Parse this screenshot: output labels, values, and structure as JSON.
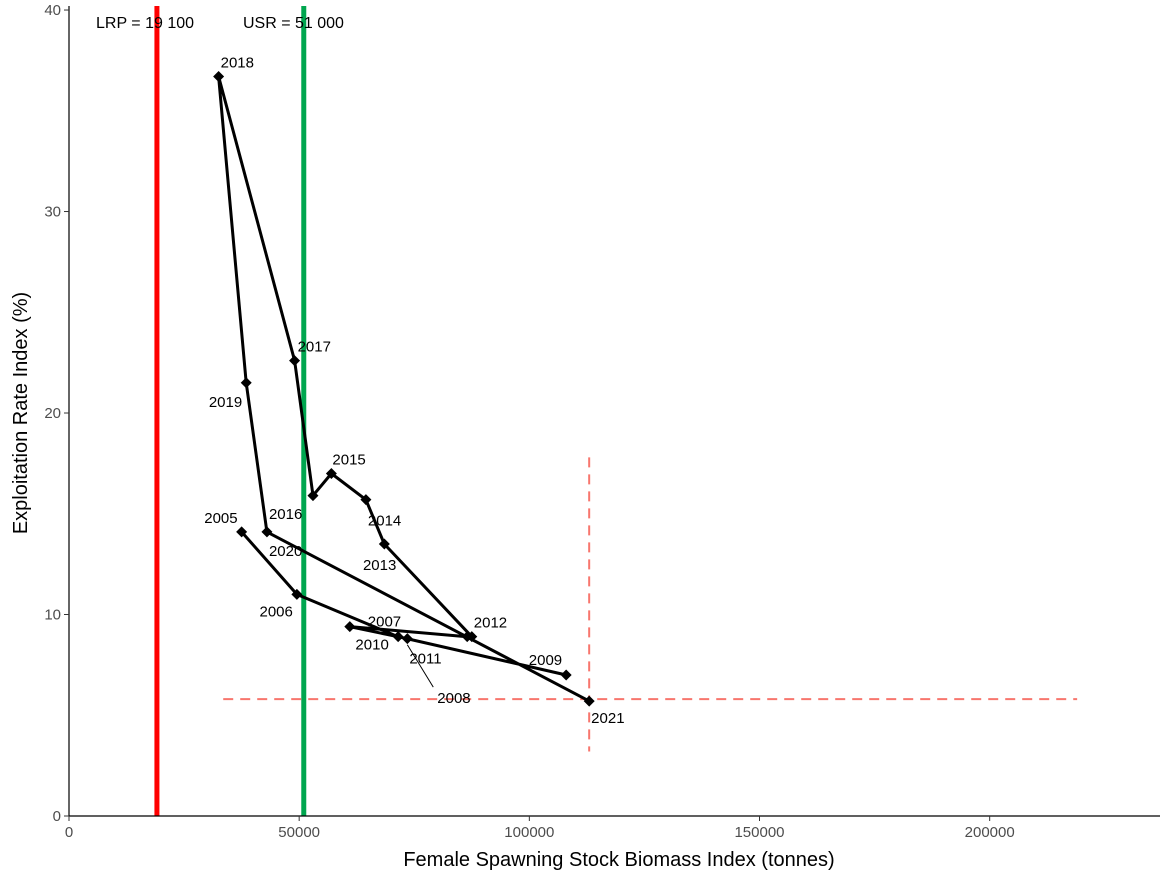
{
  "chart_data": {
    "type": "line",
    "xlabel": "Female Spawning Stock Biomass Index (tonnes)",
    "ylabel": "Exploitation Rate Index (%)",
    "xlim": [
      0,
      237000
    ],
    "ylim": [
      0,
      40.2
    ],
    "x_ticks": [
      0,
      50000,
      100000,
      150000,
      200000
    ],
    "x_tick_labels": [
      "0",
      "50000",
      "100000",
      "150000",
      "200000"
    ],
    "y_ticks": [
      0,
      10,
      20,
      30,
      40
    ],
    "y_tick_labels": [
      "0",
      "10",
      "20",
      "30",
      "40"
    ],
    "grid": false,
    "series": [
      {
        "points": [
          {
            "year": "2005",
            "x": 37500,
            "y": 14.1
          },
          {
            "year": "2006",
            "x": 49500,
            "y": 11.0
          },
          {
            "year": "2007",
            "x": 71500,
            "y": 8.9
          },
          {
            "year": "2008",
            "x": 108000,
            "y": 7.0
          },
          {
            "year": "2009",
            "x": 73500,
            "y": 8.8
          },
          {
            "year": "2010",
            "x": 61000,
            "y": 9.4
          },
          {
            "year": "2011",
            "x": 86500,
            "y": 8.9
          },
          {
            "year": "2012",
            "x": 87500,
            "y": 8.9
          },
          {
            "year": "2013",
            "x": 68500,
            "y": 13.5
          },
          {
            "year": "2014",
            "x": 64500,
            "y": 15.7
          },
          {
            "year": "2015",
            "x": 57000,
            "y": 17.0
          },
          {
            "year": "2016",
            "x": 53000,
            "y": 15.9
          },
          {
            "year": "2017",
            "x": 49000,
            "y": 22.6
          },
          {
            "year": "2018",
            "x": 32500,
            "y": 36.7
          },
          {
            "year": "2019",
            "x": 38500,
            "y": 21.5
          },
          {
            "year": "2020",
            "x": 43000,
            "y": 14.1
          },
          {
            "year": "2021",
            "x": 113000,
            "y": 5.7
          }
        ],
        "color": "#000000"
      }
    ],
    "reference_lines": [
      {
        "label": "LRP = 19 100",
        "x": 19100,
        "color": "#ff0000"
      },
      {
        "label": "USR = 51 000",
        "x": 51000,
        "color": "#00a64f"
      }
    ],
    "crosshair": {
      "color": "#f8766d",
      "x": 113000,
      "y_range": [
        3.2,
        17.8
      ],
      "y": 5.8,
      "x_range": [
        33500,
        219000
      ]
    },
    "annotations": [
      {
        "text": "2005",
        "x": 37500,
        "y": 14.1,
        "placement": "left-above"
      },
      {
        "text": "2006",
        "x": 49500,
        "y": 11.0,
        "placement": "left-below"
      },
      {
        "text": "2007",
        "x": 71500,
        "y": 8.9,
        "placement": "above-left"
      },
      {
        "text": "2008",
        "x": 108000,
        "y": 7.0,
        "placement": "callout-below"
      },
      {
        "text": "2009",
        "x": 108000,
        "y": 7.0,
        "placement": "left-above"
      },
      {
        "text": "2010",
        "x": 61000,
        "y": 9.4,
        "placement": "below-left"
      },
      {
        "text": "2011",
        "x": 73500,
        "y": 8.8,
        "placement": "below"
      },
      {
        "text": "2012",
        "x": 87500,
        "y": 8.9,
        "placement": "above-right"
      },
      {
        "text": "2013",
        "x": 68500,
        "y": 13.5,
        "placement": "below-left"
      },
      {
        "text": "2014",
        "x": 64500,
        "y": 15.7,
        "placement": "below-right"
      },
      {
        "text": "2015",
        "x": 57000,
        "y": 17.0,
        "placement": "above-right"
      },
      {
        "text": "2016",
        "x": 43000,
        "y": 14.1,
        "placement": "above-right"
      },
      {
        "text": "2017",
        "x": 49000,
        "y": 22.6,
        "placement": "above-right"
      },
      {
        "text": "2018",
        "x": 32500,
        "y": 36.7,
        "placement": "above-right"
      },
      {
        "text": "2019",
        "x": 38500,
        "y": 21.5,
        "placement": "below-left"
      },
      {
        "text": "2020",
        "x": 43000,
        "y": 14.1,
        "placement": "below-right"
      },
      {
        "text": "2021",
        "x": 113000,
        "y": 5.7,
        "placement": "below-right"
      }
    ]
  }
}
